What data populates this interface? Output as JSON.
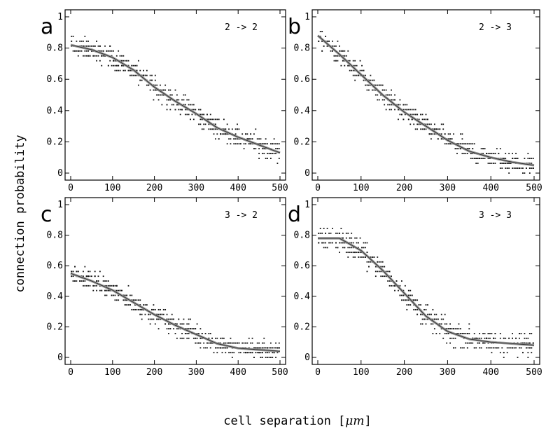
{
  "figure": {
    "ylabel": "connection probability",
    "xlabel_prefix": "cell separation [",
    "xlabel_unit": "μm",
    "xlabel_suffix": "]"
  },
  "chart_data": [
    {
      "type": "scatter",
      "panel": "a",
      "label": "2 -> 2",
      "xlim": [
        0,
        500
      ],
      "ylim": [
        0,
        1
      ],
      "xticks": [
        0,
        100,
        200,
        300,
        400,
        500
      ],
      "yticks": [
        0,
        0.2,
        0.4,
        0.6,
        0.8,
        1
      ],
      "ytick_labels": [
        "0",
        "0.2",
        "0.4",
        "0.6",
        "0.8",
        "1"
      ],
      "grid": false,
      "fit_x": [
        0,
        50,
        100,
        150,
        200,
        250,
        300,
        350,
        400,
        450,
        500
      ],
      "fit_y": [
        0.82,
        0.79,
        0.74,
        0.66,
        0.55,
        0.46,
        0.38,
        0.29,
        0.23,
        0.18,
        0.13
      ],
      "scatter_spread": 0.06
    },
    {
      "type": "scatter",
      "panel": "b",
      "label": "2 -> 3",
      "xlim": [
        0,
        500
      ],
      "ylim": [
        0,
        1
      ],
      "xticks": [
        0,
        100,
        200,
        300,
        400,
        500
      ],
      "yticks": [
        0,
        0.2,
        0.4,
        0.6,
        0.8,
        1
      ],
      "ytick_labels": [
        "0",
        "0.2",
        "0.4",
        "0.6",
        "0.8",
        "1"
      ],
      "grid": false,
      "fit_x": [
        0,
        50,
        100,
        150,
        200,
        250,
        300,
        350,
        400,
        450,
        500
      ],
      "fit_y": [
        0.88,
        0.76,
        0.63,
        0.5,
        0.39,
        0.3,
        0.21,
        0.14,
        0.1,
        0.07,
        0.05
      ],
      "scatter_spread": 0.06
    },
    {
      "type": "scatter",
      "panel": "c",
      "label": "3 -> 2",
      "xlim": [
        0,
        500
      ],
      "ylim": [
        0,
        1
      ],
      "xticks": [
        0,
        100,
        200,
        300,
        400,
        500
      ],
      "yticks": [
        0,
        0.2,
        0.4,
        0.6,
        0.8,
        1
      ],
      "ytick_labels": [
        "0",
        "0.2",
        "0.4",
        "0.6",
        "0.8",
        "1"
      ],
      "grid": false,
      "fit_x": [
        0,
        50,
        100,
        150,
        200,
        250,
        300,
        350,
        400,
        450,
        500
      ],
      "fit_y": [
        0.55,
        0.5,
        0.44,
        0.36,
        0.28,
        0.21,
        0.15,
        0.09,
        0.06,
        0.05,
        0.04
      ],
      "scatter_spread": 0.06
    },
    {
      "type": "scatter",
      "panel": "d",
      "label": "3 -> 3",
      "xlim": [
        0,
        500
      ],
      "ylim": [
        0,
        1
      ],
      "xticks": [
        0,
        100,
        200,
        300,
        400,
        500
      ],
      "yticks": [
        0,
        0.2,
        0.4,
        0.6,
        0.8,
        1
      ],
      "ytick_labels": [
        "0",
        "0.2",
        "0.4",
        "0.6",
        "0.8",
        "1"
      ],
      "grid": false,
      "fit_x": [
        0,
        50,
        100,
        150,
        200,
        250,
        300,
        350,
        400,
        450,
        500
      ],
      "fit_y": [
        0.78,
        0.78,
        0.7,
        0.57,
        0.42,
        0.27,
        0.17,
        0.12,
        0.1,
        0.09,
        0.08
      ],
      "scatter_spread": 0.07
    }
  ]
}
